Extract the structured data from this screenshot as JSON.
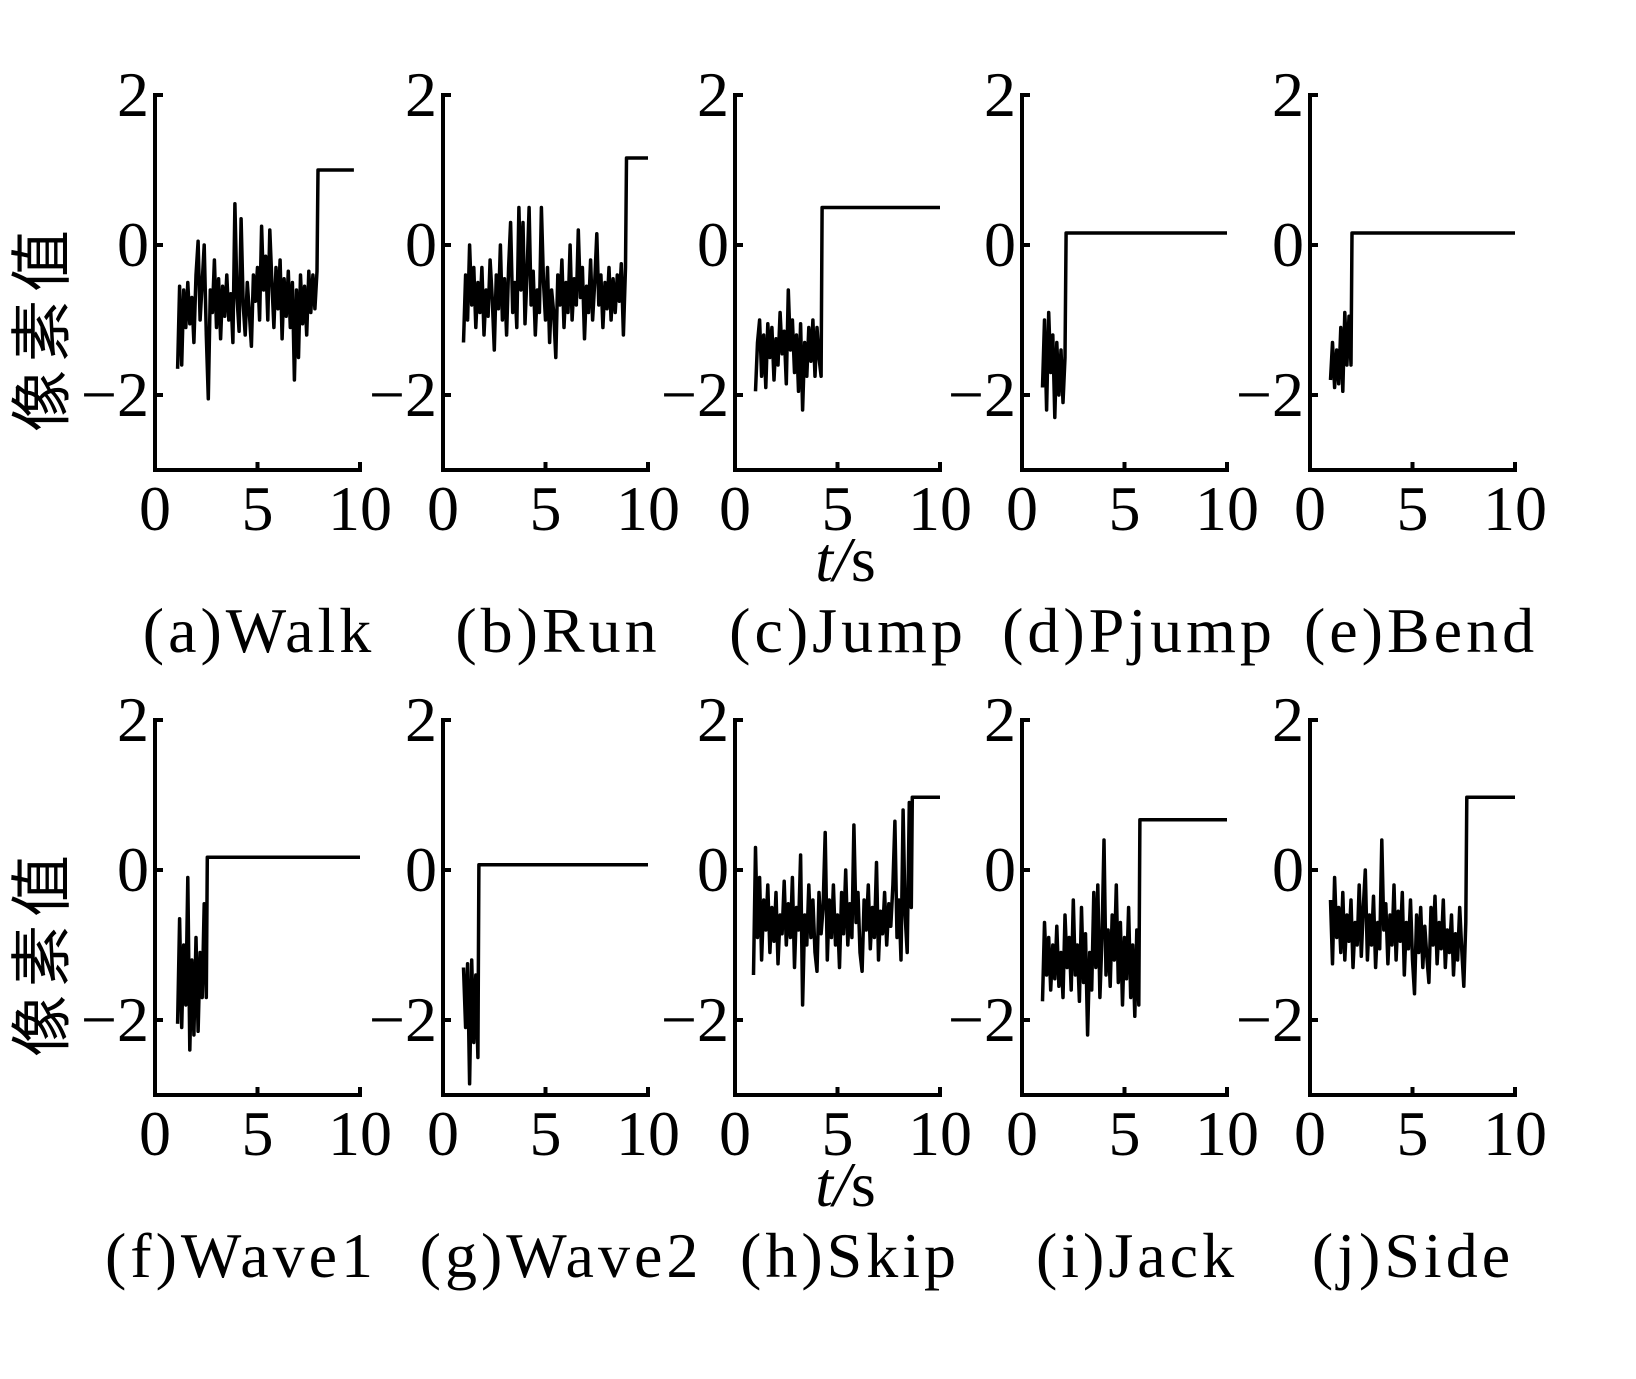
{
  "chart_data": [
    {
      "type": "line",
      "caption": "(a)Walk",
      "ylabel": "像素值",
      "xlim": [
        0,
        10
      ],
      "ylim": [
        -3,
        2
      ],
      "xticks": [
        0,
        5,
        10
      ],
      "xtick_labels": [
        "0",
        "5",
        "10"
      ],
      "yticks": [
        2,
        0,
        -2
      ],
      "ytick_labels": [
        "2",
        "0",
        "−2"
      ],
      "grid": false,
      "x": [
        1.1,
        1.2,
        1.3,
        1.4,
        1.5,
        1.6,
        1.7,
        1.8,
        1.9,
        2.0,
        2.1,
        2.2,
        2.3,
        2.4,
        2.5,
        2.6,
        2.7,
        2.8,
        2.9,
        3.0,
        3.1,
        3.2,
        3.3,
        3.4,
        3.5,
        3.6,
        3.7,
        3.8,
        3.9,
        4.0,
        4.1,
        4.2,
        4.3,
        4.4,
        4.5,
        4.6,
        4.7,
        4.8,
        4.9,
        5.0,
        5.1,
        5.2,
        5.3,
        5.4,
        5.5,
        5.6,
        5.7,
        5.8,
        5.9,
        6.0,
        6.1,
        6.2,
        6.3,
        6.4,
        6.5,
        6.6,
        6.7,
        6.8,
        6.9,
        7.0,
        7.1,
        7.2,
        7.3,
        7.4,
        7.5,
        7.6,
        7.7,
        7.8,
        7.9,
        7.95,
        9.7
      ],
      "y": [
        -1.65,
        -0.55,
        -1.6,
        -0.6,
        -1.1,
        -0.5,
        -1.05,
        -0.7,
        -1.3,
        -0.4,
        0.05,
        -1.0,
        -0.5,
        0.0,
        -1.2,
        -2.05,
        -0.6,
        -0.9,
        -0.2,
        -1.1,
        -0.45,
        -1.25,
        -0.55,
        -0.95,
        -0.4,
        -1.0,
        -0.65,
        -1.3,
        0.55,
        -0.7,
        -1.15,
        0.35,
        -0.8,
        -1.2,
        -0.5,
        -0.9,
        -1.35,
        -0.4,
        -0.75,
        -0.3,
        -1.0,
        0.25,
        -0.6,
        -0.15,
        -1.0,
        0.2,
        -0.5,
        -1.1,
        -0.3,
        -0.85,
        -0.2,
        -1.25,
        -0.45,
        -0.95,
        -0.35,
        -1.1,
        -0.5,
        -1.8,
        -0.6,
        -1.5,
        -0.4,
        -1.05,
        -0.55,
        -1.2,
        -0.35,
        -0.9,
        -0.4,
        -0.85,
        -0.35,
        1.0,
        1.0
      ]
    },
    {
      "type": "line",
      "caption": "(b)Run",
      "xlim": [
        0,
        10
      ],
      "ylim": [
        -3,
        2
      ],
      "xticks": [
        0,
        5,
        10
      ],
      "xtick_labels": [
        "0",
        "5",
        "10"
      ],
      "yticks": [
        2,
        0,
        -2
      ],
      "ytick_labels": [
        "2",
        "0",
        "−2"
      ],
      "grid": false,
      "x": [
        1.0,
        1.1,
        1.2,
        1.3,
        1.4,
        1.5,
        1.6,
        1.7,
        1.8,
        1.9,
        2.0,
        2.1,
        2.2,
        2.3,
        2.4,
        2.5,
        2.6,
        2.7,
        2.8,
        2.9,
        3.0,
        3.1,
        3.2,
        3.3,
        3.4,
        3.5,
        3.6,
        3.7,
        3.8,
        3.9,
        4.0,
        4.1,
        4.2,
        4.3,
        4.4,
        4.5,
        4.6,
        4.7,
        4.8,
        4.9,
        5.0,
        5.1,
        5.2,
        5.3,
        5.4,
        5.5,
        5.6,
        5.7,
        5.8,
        5.9,
        6.0,
        6.1,
        6.2,
        6.3,
        6.4,
        6.5,
        6.6,
        6.7,
        6.8,
        6.9,
        7.0,
        7.1,
        7.2,
        7.3,
        7.4,
        7.5,
        7.6,
        7.7,
        7.8,
        7.9,
        8.0,
        8.1,
        8.2,
        8.3,
        8.4,
        8.5,
        8.6,
        8.7,
        8.8,
        8.9,
        8.95,
        10
      ],
      "y": [
        -1.3,
        -0.4,
        -1.0,
        0.0,
        -0.8,
        -0.3,
        -1.1,
        -0.5,
        -0.9,
        -0.3,
        -1.2,
        -0.6,
        -0.95,
        -0.2,
        -0.7,
        -1.4,
        -0.4,
        -0.85,
        0.0,
        -1.0,
        -0.45,
        -1.2,
        -0.3,
        0.3,
        -0.9,
        -0.5,
        -1.1,
        0.5,
        -0.6,
        0.3,
        -1.05,
        -0.4,
        0.5,
        -0.8,
        -0.35,
        -1.2,
        -0.6,
        -0.9,
        0.5,
        -0.5,
        -1.0,
        -0.3,
        -1.3,
        -0.6,
        -0.9,
        -1.5,
        -0.4,
        -0.8,
        -0.2,
        -1.1,
        -0.5,
        -0.9,
        0.0,
        -1.0,
        -0.45,
        -0.8,
        0.2,
        -0.7,
        -0.3,
        -1.25,
        -0.55,
        -0.9,
        -0.2,
        -1.0,
        -0.5,
        0.15,
        -0.8,
        -0.4,
        -1.1,
        -0.5,
        -0.85,
        -0.3,
        -1.0,
        -0.45,
        -0.9,
        -0.4,
        -0.75,
        -0.25,
        -1.2,
        -0.3,
        1.16,
        1.16
      ]
    },
    {
      "type": "line",
      "caption": "(c)Jump",
      "xlabel": "t/s",
      "xlim": [
        0,
        10
      ],
      "ylim": [
        -3,
        2
      ],
      "xticks": [
        0,
        5,
        10
      ],
      "xtick_labels": [
        "0",
        "5",
        "10"
      ],
      "yticks": [
        2,
        0,
        -2
      ],
      "ytick_labels": [
        "2",
        "0",
        "−2"
      ],
      "grid": false,
      "x": [
        1.0,
        1.1,
        1.2,
        1.3,
        1.4,
        1.5,
        1.6,
        1.7,
        1.8,
        1.9,
        2.0,
        2.1,
        2.2,
        2.3,
        2.4,
        2.5,
        2.6,
        2.7,
        2.8,
        2.9,
        3.0,
        3.1,
        3.2,
        3.3,
        3.4,
        3.5,
        3.6,
        3.7,
        3.8,
        3.9,
        4.0,
        4.1,
        4.2,
        4.25,
        10
      ],
      "y": [
        -1.95,
        -1.3,
        -1.0,
        -1.75,
        -1.2,
        -1.9,
        -1.05,
        -1.5,
        -1.1,
        -1.8,
        -1.25,
        -1.6,
        -0.9,
        -1.45,
        -1.15,
        -1.85,
        -0.6,
        -1.4,
        -1.0,
        -1.7,
        -1.2,
        -1.95,
        -1.05,
        -2.2,
        -1.3,
        -1.75,
        -1.1,
        -1.55,
        -1.0,
        -1.75,
        -1.1,
        -1.5,
        -1.75,
        0.5,
        0.5
      ]
    },
    {
      "type": "line",
      "caption": "(d)Pjump",
      "xlim": [
        0,
        10
      ],
      "ylim": [
        -3,
        2
      ],
      "xticks": [
        0,
        5,
        10
      ],
      "xtick_labels": [
        "0",
        "5",
        "10"
      ],
      "yticks": [
        2,
        0,
        -2
      ],
      "ytick_labels": [
        "2",
        "0",
        "−2"
      ],
      "grid": false,
      "x": [
        1.0,
        1.1,
        1.2,
        1.3,
        1.4,
        1.5,
        1.6,
        1.7,
        1.8,
        1.9,
        2.0,
        2.1,
        2.15,
        10
      ],
      "y": [
        -1.9,
        -1.0,
        -2.2,
        -0.9,
        -1.7,
        -1.2,
        -2.3,
        -1.3,
        -2.0,
        -1.4,
        -2.1,
        -1.5,
        0.16,
        0.16
      ]
    },
    {
      "type": "line",
      "caption": "(e)Bend",
      "xlim": [
        0,
        10
      ],
      "ylim": [
        -3,
        2
      ],
      "xticks": [
        0,
        5,
        10
      ],
      "xtick_labels": [
        "0",
        "5",
        "10"
      ],
      "yticks": [
        2,
        0,
        -2
      ],
      "ytick_labels": [
        "2",
        "0",
        "−2"
      ],
      "grid": false,
      "x": [
        1.0,
        1.1,
        1.2,
        1.3,
        1.4,
        1.5,
        1.6,
        1.7,
        1.8,
        1.9,
        2.0,
        2.05,
        10
      ],
      "y": [
        -1.8,
        -1.3,
        -1.9,
        -1.4,
        -1.85,
        -1.1,
        -1.95,
        -0.9,
        -1.6,
        -0.95,
        -1.6,
        0.16,
        0.16
      ]
    },
    {
      "type": "line",
      "caption": "(f)Wave1",
      "ylabel": "像素值",
      "xlim": [
        0,
        10
      ],
      "ylim": [
        -3,
        2
      ],
      "xticks": [
        0,
        5,
        10
      ],
      "xtick_labels": [
        "0",
        "5",
        "10"
      ],
      "yticks": [
        2,
        0,
        -2
      ],
      "ytick_labels": [
        "2",
        "0",
        "−2"
      ],
      "grid": false,
      "x": [
        1.1,
        1.2,
        1.3,
        1.4,
        1.5,
        1.6,
        1.7,
        1.8,
        1.9,
        2.0,
        2.1,
        2.2,
        2.3,
        2.4,
        2.5,
        2.55,
        10
      ],
      "y": [
        -2.05,
        -0.65,
        -2.1,
        -1.0,
        -1.8,
        -0.1,
        -2.4,
        -1.2,
        -2.2,
        -0.9,
        -2.15,
        -1.1,
        -1.7,
        -0.45,
        -1.7,
        0.17,
        0.17
      ]
    },
    {
      "type": "line",
      "caption": "(g)Wave2",
      "xlim": [
        0,
        10
      ],
      "ylim": [
        -3,
        2
      ],
      "xticks": [
        0,
        5,
        10
      ],
      "xtick_labels": [
        "0",
        "5",
        "10"
      ],
      "yticks": [
        2,
        0,
        -2
      ],
      "ytick_labels": [
        "2",
        "0",
        "−2"
      ],
      "grid": false,
      "x": [
        1.0,
        1.1,
        1.2,
        1.3,
        1.4,
        1.5,
        1.6,
        1.7,
        1.75,
        10
      ],
      "y": [
        -1.3,
        -2.1,
        -1.25,
        -2.85,
        -1.2,
        -2.3,
        -1.4,
        -2.5,
        0.07,
        0.07
      ]
    },
    {
      "type": "line",
      "caption": "(h)Skip",
      "xlabel": "t/s",
      "xlim": [
        0,
        10
      ],
      "ylim": [
        -3,
        2
      ],
      "xticks": [
        0,
        5,
        10
      ],
      "xtick_labels": [
        "0",
        "5",
        "10"
      ],
      "yticks": [
        2,
        0,
        -2
      ],
      "ytick_labels": [
        "2",
        "0",
        "−2"
      ],
      "grid": false,
      "x": [
        0.9,
        1.0,
        1.1,
        1.2,
        1.3,
        1.4,
        1.5,
        1.6,
        1.7,
        1.8,
        1.9,
        2.0,
        2.1,
        2.2,
        2.3,
        2.4,
        2.5,
        2.6,
        2.7,
        2.8,
        2.9,
        3.0,
        3.1,
        3.2,
        3.3,
        3.4,
        3.5,
        3.6,
        3.7,
        3.8,
        3.9,
        4.0,
        4.1,
        4.2,
        4.3,
        4.4,
        4.5,
        4.6,
        4.7,
        4.8,
        4.9,
        5.0,
        5.1,
        5.2,
        5.3,
        5.4,
        5.5,
        5.6,
        5.7,
        5.8,
        5.9,
        6.0,
        6.1,
        6.2,
        6.3,
        6.4,
        6.5,
        6.6,
        6.7,
        6.8,
        6.9,
        7.0,
        7.1,
        7.2,
        7.3,
        7.4,
        7.5,
        7.6,
        7.7,
        7.8,
        7.9,
        8.0,
        8.1,
        8.2,
        8.3,
        8.4,
        8.5,
        8.6,
        8.65,
        10
      ],
      "y": [
        -1.4,
        0.3,
        -0.9,
        -0.1,
        -1.2,
        -0.4,
        -0.8,
        -0.2,
        -1.1,
        -0.5,
        -0.95,
        -0.3,
        -1.25,
        -0.6,
        -0.85,
        -0.15,
        -1.0,
        -0.45,
        -0.9,
        -0.1,
        -1.3,
        -0.5,
        -0.8,
        0.2,
        -1.8,
        -0.6,
        -1.0,
        -0.2,
        -0.9,
        -0.4,
        -1.1,
        -1.35,
        -0.3,
        -0.85,
        -0.5,
        0.5,
        -1.2,
        -0.4,
        -0.9,
        -0.2,
        -1.0,
        -0.6,
        -1.3,
        -0.3,
        -0.85,
        0.0,
        -1.0,
        -0.45,
        -0.9,
        0.6,
        -0.7,
        -0.3,
        -1.1,
        -1.35,
        -0.4,
        -0.8,
        -0.2,
        -1.05,
        -0.5,
        -0.9,
        0.1,
        -1.2,
        -0.55,
        -0.85,
        -0.3,
        -1.0,
        -0.45,
        -0.75,
        -0.2,
        0.65,
        -0.9,
        -0.4,
        -1.2,
        0.8,
        -0.6,
        -1.1,
        0.9,
        -0.5,
        0.97,
        0.97
      ]
    },
    {
      "type": "line",
      "caption": "(i)Jack",
      "xlim": [
        0,
        10
      ],
      "ylim": [
        -3,
        2
      ],
      "xticks": [
        0,
        5,
        10
      ],
      "xtick_labels": [
        "0",
        "5",
        "10"
      ],
      "yticks": [
        2,
        0,
        -2
      ],
      "ytick_labels": [
        "2",
        "0",
        "−2"
      ],
      "grid": false,
      "x": [
        1.0,
        1.1,
        1.2,
        1.3,
        1.4,
        1.5,
        1.6,
        1.7,
        1.8,
        1.9,
        2.0,
        2.1,
        2.2,
        2.3,
        2.4,
        2.5,
        2.6,
        2.7,
        2.8,
        2.9,
        3.0,
        3.1,
        3.2,
        3.3,
        3.4,
        3.5,
        3.6,
        3.7,
        3.8,
        3.9,
        4.0,
        4.1,
        4.2,
        4.3,
        4.4,
        4.5,
        4.6,
        4.7,
        4.8,
        4.9,
        5.0,
        5.1,
        5.2,
        5.3,
        5.4,
        5.5,
        5.6,
        5.7,
        5.75,
        10
      ],
      "y": [
        -1.75,
        -0.7,
        -1.4,
        -0.9,
        -1.6,
        -1.0,
        -1.45,
        -0.75,
        -1.55,
        -1.1,
        -1.7,
        -0.6,
        -1.3,
        -0.9,
        -1.6,
        -0.4,
        -1.4,
        -1.0,
        -1.75,
        -0.5,
        -1.5,
        -0.85,
        -2.2,
        -1.1,
        -1.6,
        -0.3,
        -1.3,
        -0.2,
        -1.7,
        -0.9,
        0.4,
        -1.4,
        -0.8,
        -1.55,
        -0.6,
        -1.2,
        -0.2,
        -1.5,
        -0.7,
        -1.8,
        -0.9,
        -1.45,
        -0.5,
        -1.7,
        -1.0,
        -1.95,
        -0.8,
        -1.8,
        0.67,
        0.67
      ]
    },
    {
      "type": "line",
      "caption": "(j)Side",
      "xlim": [
        0,
        10
      ],
      "ylim": [
        -3,
        2
      ],
      "xticks": [
        0,
        5,
        10
      ],
      "xtick_labels": [
        "0",
        "5",
        "10"
      ],
      "yticks": [
        2,
        0,
        -2
      ],
      "ytick_labels": [
        "2",
        "0",
        "−2"
      ],
      "grid": false,
      "x": [
        1.0,
        1.1,
        1.2,
        1.3,
        1.4,
        1.5,
        1.6,
        1.7,
        1.8,
        1.9,
        2.0,
        2.1,
        2.2,
        2.3,
        2.4,
        2.5,
        2.6,
        2.7,
        2.8,
        2.9,
        3.0,
        3.1,
        3.2,
        3.3,
        3.4,
        3.5,
        3.6,
        3.7,
        3.8,
        3.9,
        4.0,
        4.1,
        4.2,
        4.3,
        4.4,
        4.5,
        4.6,
        4.7,
        4.8,
        4.9,
        5.0,
        5.1,
        5.2,
        5.3,
        5.4,
        5.5,
        5.6,
        5.7,
        5.8,
        5.9,
        6.0,
        6.1,
        6.2,
        6.3,
        6.4,
        6.5,
        6.6,
        6.7,
        6.8,
        6.9,
        7.0,
        7.1,
        7.2,
        7.3,
        7.4,
        7.5,
        7.6,
        7.65,
        10
      ],
      "y": [
        -0.4,
        -1.25,
        -0.1,
        -0.9,
        -0.5,
        -1.1,
        -0.3,
        -1.2,
        -0.6,
        -0.95,
        -0.4,
        -1.3,
        -0.7,
        -1.0,
        -0.2,
        -1.15,
        -0.5,
        0.0,
        -1.2,
        -0.6,
        -1.0,
        -0.35,
        -1.3,
        -0.7,
        -1.05,
        0.4,
        -0.8,
        -0.45,
        -1.25,
        -0.6,
        -1.0,
        -0.2,
        -1.2,
        -0.55,
        -0.95,
        -0.3,
        -1.4,
        -0.7,
        -1.05,
        -0.4,
        -1.2,
        -1.65,
        -0.6,
        -1.1,
        -0.5,
        -1.3,
        -0.75,
        -1.15,
        -1.5,
        -0.5,
        -1.0,
        -0.35,
        -1.25,
        -0.7,
        -1.05,
        -0.4,
        -1.3,
        -0.8,
        -1.1,
        -0.6,
        -1.4,
        -0.85,
        -1.2,
        -0.5,
        -1.05,
        -1.55,
        -0.7,
        0.97,
        0.97
      ]
    }
  ]
}
